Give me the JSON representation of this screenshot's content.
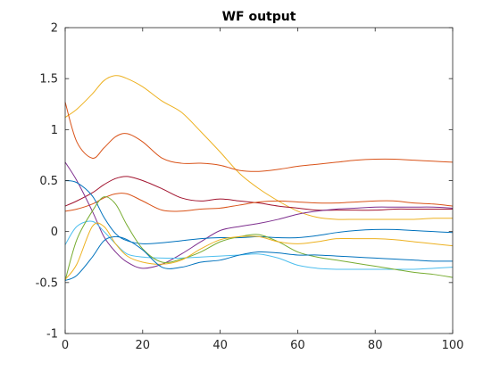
{
  "chart_data": {
    "type": "line",
    "title": "WF output",
    "xlabel": "",
    "ylabel": "",
    "xlim": [
      0,
      100
    ],
    "ylim": [
      -1,
      2
    ],
    "x_ticks": [
      "0",
      "20",
      "40",
      "60",
      "80",
      "100"
    ],
    "y_ticks": [
      "-1",
      "-0.5",
      "0",
      "0.5",
      "1",
      "1.5",
      "2"
    ],
    "grid": false,
    "legend": "none",
    "x": [
      0,
      3,
      7,
      10,
      13,
      16,
      20,
      25,
      30,
      35,
      40,
      45,
      50,
      55,
      60,
      65,
      70,
      75,
      80,
      85,
      90,
      95,
      100
    ],
    "series": [
      {
        "color": "#EDB120",
        "values": [
          1.12,
          1.2,
          1.35,
          1.48,
          1.53,
          1.5,
          1.42,
          1.28,
          1.17,
          0.98,
          0.78,
          0.57,
          0.42,
          0.3,
          0.2,
          0.14,
          0.12,
          0.12,
          0.12,
          0.12,
          0.12,
          0.13,
          0.13
        ]
      },
      {
        "color": "#D95319",
        "values": [
          1.27,
          0.88,
          0.72,
          0.82,
          0.93,
          0.96,
          0.88,
          0.72,
          0.67,
          0.67,
          0.65,
          0.6,
          0.59,
          0.61,
          0.64,
          0.66,
          0.68,
          0.7,
          0.71,
          0.71,
          0.7,
          0.69,
          0.68
        ]
      },
      {
        "color": "#A2142F",
        "values": [
          0.25,
          0.3,
          0.38,
          0.46,
          0.52,
          0.54,
          0.5,
          0.42,
          0.33,
          0.3,
          0.32,
          0.3,
          0.28,
          0.25,
          0.23,
          0.21,
          0.21,
          0.21,
          0.21,
          0.22,
          0.22,
          0.22,
          0.22
        ]
      },
      {
        "color": "#D95319",
        "values": [
          0.2,
          0.22,
          0.27,
          0.33,
          0.37,
          0.37,
          0.3,
          0.21,
          0.2,
          0.22,
          0.23,
          0.26,
          0.29,
          0.3,
          0.29,
          0.28,
          0.28,
          0.29,
          0.3,
          0.3,
          0.28,
          0.27,
          0.25
        ]
      },
      {
        "color": "#7E2F8E",
        "values": [
          0.68,
          0.5,
          0.2,
          -0.05,
          -0.2,
          -0.3,
          -0.36,
          -0.32,
          -0.22,
          -0.1,
          0.01,
          0.05,
          0.08,
          0.12,
          0.17,
          0.2,
          0.22,
          0.23,
          0.24,
          0.24,
          0.24,
          0.24,
          0.23
        ]
      },
      {
        "color": "#0072BD",
        "values": [
          0.5,
          0.48,
          0.35,
          0.14,
          -0.02,
          -0.09,
          -0.12,
          -0.11,
          -0.09,
          -0.07,
          -0.06,
          -0.06,
          -0.05,
          -0.06,
          -0.06,
          -0.04,
          -0.01,
          0.01,
          0.02,
          0.02,
          0.01,
          0.0,
          -0.01
        ]
      },
      {
        "color": "#4DBEEE",
        "values": [
          -0.13,
          0.05,
          0.1,
          0.0,
          -0.12,
          -0.22,
          -0.25,
          -0.26,
          -0.26,
          -0.25,
          -0.24,
          -0.23,
          -0.22,
          -0.26,
          -0.33,
          -0.36,
          -0.37,
          -0.37,
          -0.37,
          -0.37,
          -0.37,
          -0.36,
          -0.35
        ]
      },
      {
        "color": "#77AC30",
        "values": [
          -0.48,
          -0.08,
          0.2,
          0.34,
          0.27,
          0.06,
          -0.17,
          -0.3,
          -0.27,
          -0.2,
          -0.1,
          -0.05,
          -0.03,
          -0.1,
          -0.2,
          -0.25,
          -0.28,
          -0.31,
          -0.34,
          -0.37,
          -0.4,
          -0.42,
          -0.45
        ]
      },
      {
        "color": "#EDB120",
        "values": [
          -0.47,
          -0.32,
          0.05,
          0.05,
          -0.12,
          -0.24,
          -0.3,
          -0.32,
          -0.28,
          -0.17,
          -0.08,
          -0.05,
          -0.05,
          -0.1,
          -0.12,
          -0.1,
          -0.07,
          -0.07,
          -0.07,
          -0.08,
          -0.1,
          -0.12,
          -0.14
        ]
      },
      {
        "color": "#0072BD",
        "values": [
          -0.48,
          -0.43,
          -0.25,
          -0.09,
          -0.05,
          -0.08,
          -0.18,
          -0.35,
          -0.35,
          -0.3,
          -0.28,
          -0.23,
          -0.2,
          -0.21,
          -0.23,
          -0.23,
          -0.24,
          -0.25,
          -0.26,
          -0.27,
          -0.28,
          -0.29,
          -0.29
        ]
      }
    ]
  }
}
